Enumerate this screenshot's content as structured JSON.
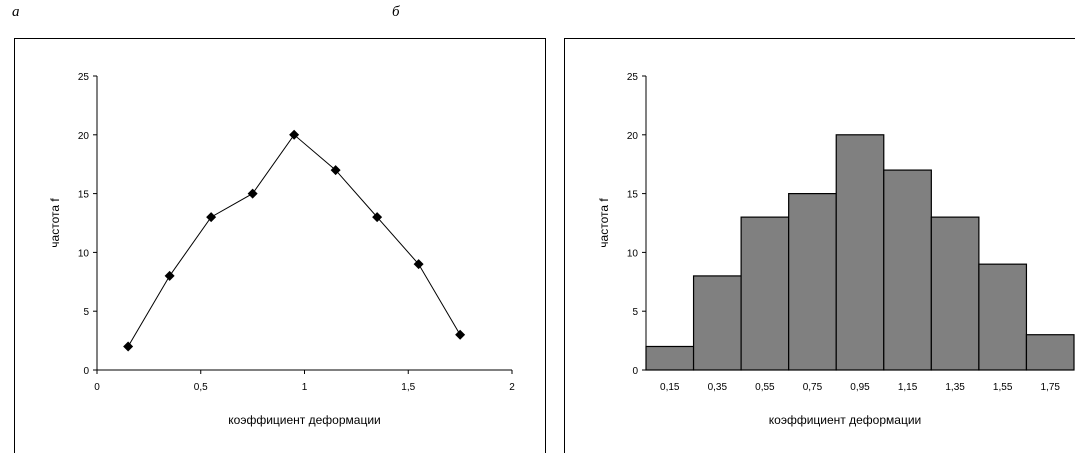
{
  "panels": {
    "left_letter": "а",
    "right_letter": "б"
  },
  "chart_data": [
    {
      "type": "line",
      "marker": "diamond",
      "xlabel": "коэффициент деформации",
      "ylabel": "частота f",
      "xlim": [
        0,
        2
      ],
      "ylim": [
        0,
        25
      ],
      "x_ticks": [
        0,
        0.5,
        1,
        1.5,
        2
      ],
      "x_tick_labels": [
        "0",
        "0,5",
        "1",
        "1,5",
        "2"
      ],
      "y_ticks": [
        0,
        5,
        10,
        15,
        20,
        25
      ],
      "y_tick_labels": [
        "0",
        "5",
        "10",
        "15",
        "20",
        "25"
      ],
      "x": [
        0.15,
        0.35,
        0.55,
        0.75,
        0.95,
        1.15,
        1.35,
        1.55,
        1.75
      ],
      "y": [
        2,
        8,
        13,
        15,
        20,
        17,
        13,
        9,
        3
      ],
      "grid": false,
      "colors": {
        "line": "#000000",
        "marker": "#000000"
      }
    },
    {
      "type": "bar",
      "xlabel": "коэффициент деформации",
      "ylabel": "частота f",
      "ylim": [
        0,
        25
      ],
      "y_ticks": [
        0,
        5,
        10,
        15,
        20,
        25
      ],
      "y_tick_labels": [
        "0",
        "5",
        "10",
        "15",
        "20",
        "25"
      ],
      "categories": [
        "0,15",
        "0,35",
        "0,55",
        "0,75",
        "0,95",
        "1,15",
        "1,35",
        "1,55",
        "1,75"
      ],
      "values": [
        2,
        8,
        13,
        15,
        20,
        17,
        13,
        9,
        3
      ],
      "grid": false,
      "colors": {
        "bar_fill": "#808080",
        "bar_stroke": "#000000"
      }
    }
  ]
}
